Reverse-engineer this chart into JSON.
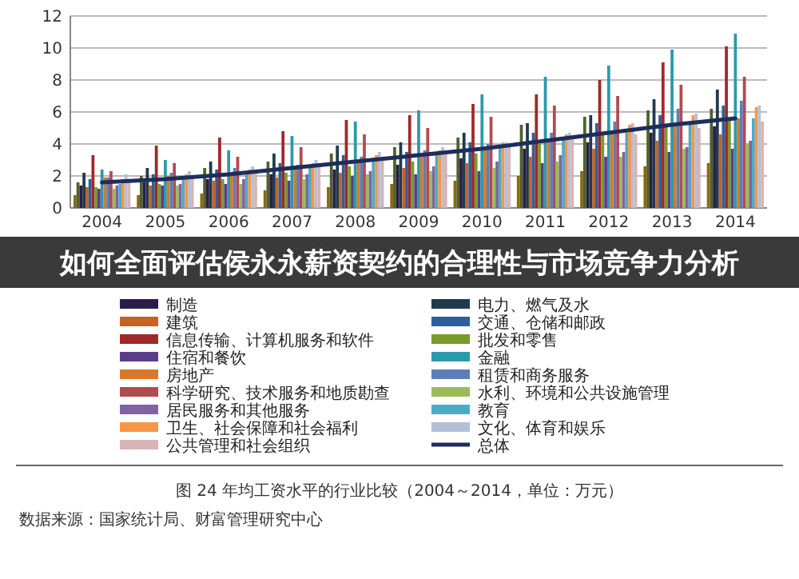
{
  "chart_data": {
    "type": "bar",
    "title": "如何全面评估侯永永薪资契约的合理性与市场竞争力分析",
    "categories": [
      "2004",
      "2005",
      "2006",
      "2007",
      "2008",
      "2009",
      "2010",
      "2011",
      "2012",
      "2013",
      "2014"
    ],
    "ylim": [
      0,
      12
    ],
    "yticks": [
      0,
      2,
      4,
      6,
      8,
      10,
      12
    ],
    "grid": "y",
    "legend": "bottom",
    "series": [
      {
        "color": "#8b6914",
        "values": [
          0.8,
          0.8,
          0.9,
          1.1,
          1.3,
          1.5,
          1.7,
          2.0,
          2.3,
          2.6,
          2.8
        ]
      },
      {
        "color": "#4f6228",
        "values": [
          1.6,
          2.0,
          2.5,
          2.9,
          3.4,
          3.8,
          4.4,
          5.2,
          5.7,
          6.1,
          6.2
        ]
      },
      {
        "name": "制造",
        "color": "#2b1d4a",
        "values": [
          1.4,
          1.6,
          1.8,
          2.1,
          2.4,
          2.7,
          3.1,
          3.7,
          4.1,
          4.7,
          5.1
        ]
      },
      {
        "name": "电力、燃气及水",
        "color": "#1f3b4d",
        "values": [
          2.2,
          2.5,
          2.9,
          3.4,
          3.9,
          4.1,
          4.7,
          5.3,
          5.8,
          6.8,
          7.4
        ]
      },
      {
        "name": "建筑",
        "color": "#c0642a",
        "values": [
          1.3,
          1.4,
          1.7,
          1.9,
          2.2,
          2.5,
          2.8,
          3.2,
          3.7,
          4.2,
          4.6
        ]
      },
      {
        "name": "交通、仓储和邮政",
        "color": "#2f5f9a",
        "values": [
          1.8,
          2.1,
          2.4,
          2.8,
          3.3,
          3.5,
          4.1,
          4.7,
          5.3,
          5.8,
          6.4
        ]
      },
      {
        "name": "信息传输、计算机服务和软件",
        "color": "#a0282a",
        "values": [
          3.3,
          3.9,
          4.4,
          4.8,
          5.5,
          5.8,
          6.5,
          7.1,
          8.0,
          9.1,
          10.1
        ]
      },
      {
        "name": "批发和零售",
        "color": "#7a9a2c",
        "values": [
          1.3,
          1.5,
          1.8,
          2.2,
          2.6,
          2.9,
          3.4,
          4.0,
          4.6,
          5.1,
          5.6
        ]
      },
      {
        "name": "住宿和餐饮",
        "color": "#5b3e8a",
        "values": [
          1.2,
          1.4,
          1.5,
          1.7,
          2.0,
          2.1,
          2.3,
          2.8,
          3.2,
          3.5,
          3.7
        ]
      },
      {
        "name": "金融",
        "color": "#2a9aaa",
        "values": [
          2.4,
          3.0,
          3.6,
          4.5,
          5.4,
          6.1,
          7.1,
          8.2,
          8.9,
          9.9,
          10.9
        ]
      },
      {
        "name": "房地产",
        "color": "#d9782a",
        "values": [
          1.9,
          2.0,
          2.2,
          2.6,
          3.0,
          3.3,
          3.6,
          4.2,
          4.7,
          5.2,
          5.6
        ]
      },
      {
        "name": "租赁和商务服务",
        "color": "#5b7fb8",
        "values": [
          1.9,
          2.2,
          2.5,
          2.7,
          3.2,
          3.6,
          4.0,
          4.7,
          5.4,
          6.2,
          6.7
        ]
      },
      {
        "name": "科学研究、技术服务和地质勘查",
        "color": "#b24a52",
        "values": [
          2.3,
          2.8,
          3.2,
          3.8,
          4.6,
          5.0,
          5.7,
          6.4,
          7.0,
          7.7,
          8.2
        ]
      },
      {
        "name": "水利、环境和公共设施管理",
        "color": "#9bbb59",
        "values": [
          1.2,
          1.4,
          1.5,
          1.8,
          2.1,
          2.3,
          2.5,
          2.9,
          3.2,
          3.7,
          4.0
        ]
      },
      {
        "name": "居民服务和其他服务",
        "color": "#8064a2",
        "values": [
          1.4,
          1.5,
          1.8,
          2.1,
          2.3,
          2.6,
          2.9,
          3.3,
          3.5,
          3.8,
          4.2
        ]
      },
      {
        "name": "教育",
        "color": "#4bacc6",
        "values": [
          1.5,
          1.8,
          2.1,
          2.5,
          2.9,
          3.5,
          3.9,
          4.4,
          4.7,
          5.2,
          5.6
        ]
      },
      {
        "name": "卫生、社会保障和社会福利",
        "color": "#f79646",
        "values": [
          1.8,
          2.1,
          2.4,
          2.8,
          3.3,
          3.6,
          4.1,
          4.6,
          5.2,
          5.8,
          6.3
        ]
      },
      {
        "name": "文化、体育和娱乐",
        "color": "#b4c0d8",
        "values": [
          2.1,
          2.3,
          2.6,
          3.0,
          3.5,
          3.8,
          4.1,
          4.7,
          5.3,
          5.9,
          6.4
        ]
      },
      {
        "name": "公共管理和社会组织",
        "color": "#d8b4b4",
        "values": [
          1.7,
          2.0,
          2.3,
          2.8,
          3.2,
          3.5,
          3.8,
          4.3,
          4.6,
          5.0,
          5.4
        ]
      },
      {
        "name": "总体",
        "type": "line",
        "color": "#1f2d5a",
        "values": [
          1.6,
          1.8,
          2.1,
          2.5,
          2.9,
          3.3,
          3.7,
          4.2,
          4.7,
          5.2,
          5.6
        ]
      }
    ],
    "annotations": [
      "图 24 年均工资水平的行业比较（2004～2014，单位：万元）",
      "数据来源：国家统计局、财富管理研究中心"
    ]
  }
}
